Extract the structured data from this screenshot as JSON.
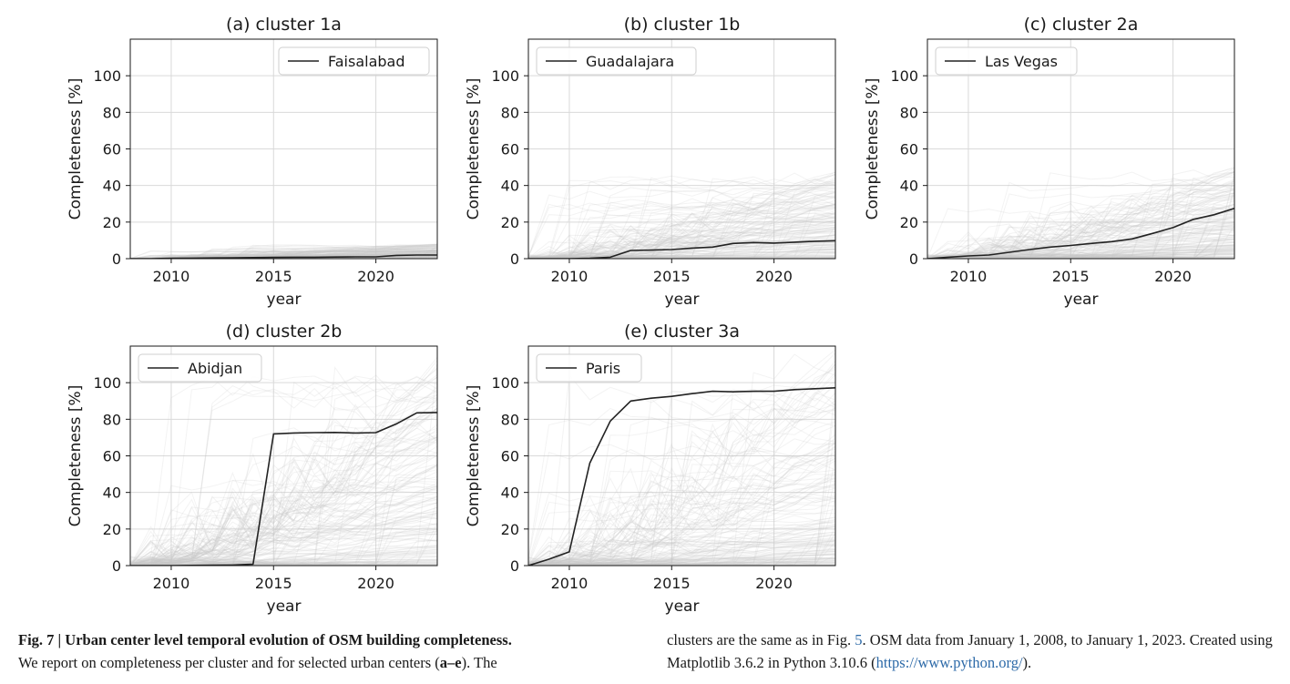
{
  "chart_data": [
    {
      "type": "line",
      "title": "(a) cluster 1a",
      "xlabel": "year",
      "ylabel": "Completeness [%]",
      "xlim": [
        2008,
        2023
      ],
      "ylim": [
        0,
        120
      ],
      "xticks": [
        2010,
        2015,
        2020
      ],
      "yticks": [
        0,
        20,
        40,
        60,
        80,
        100
      ],
      "grid": true,
      "legend_position": "top-right",
      "background_band_max": 8,
      "series": [
        {
          "name": "Faisalabad",
          "color": "#222222",
          "x": [
            2008,
            2009,
            2010,
            2011,
            2012,
            2013,
            2014,
            2015,
            2016,
            2017,
            2018,
            2019,
            2020,
            2021,
            2022,
            2023
          ],
          "y": [
            0,
            0,
            0.2,
            0.3,
            0.4,
            0.5,
            0.6,
            0.7,
            0.8,
            0.8,
            0.9,
            1.0,
            1.0,
            1.8,
            2.0,
            2.0
          ]
        }
      ]
    },
    {
      "type": "line",
      "title": "(b) cluster 1b",
      "xlabel": "year",
      "ylabel": "Completeness [%]",
      "xlim": [
        2008,
        2023
      ],
      "ylim": [
        0,
        120
      ],
      "xticks": [
        2010,
        2015,
        2020
      ],
      "yticks": [
        0,
        20,
        40,
        60,
        80,
        100
      ],
      "grid": true,
      "legend_position": "top-left",
      "background_band_max": 48,
      "series": [
        {
          "name": "Guadalajara",
          "color": "#222222",
          "x": [
            2008,
            2009,
            2010,
            2011,
            2012,
            2013,
            2014,
            2015,
            2016,
            2017,
            2018,
            2019,
            2020,
            2021,
            2022,
            2023
          ],
          "y": [
            0,
            0,
            0,
            0.2,
            0.8,
            4.5,
            4.7,
            5.0,
            5.8,
            6.3,
            8.3,
            8.8,
            8.5,
            9.0,
            9.5,
            9.8
          ]
        }
      ]
    },
    {
      "type": "line",
      "title": "(c) cluster 2a",
      "xlabel": "year",
      "ylabel": "Completeness [%]",
      "xlim": [
        2008,
        2023
      ],
      "ylim": [
        0,
        120
      ],
      "xticks": [
        2010,
        2015,
        2020
      ],
      "yticks": [
        0,
        20,
        40,
        60,
        80,
        100
      ],
      "grid": true,
      "legend_position": "top-left",
      "background_band_max": 50,
      "series": [
        {
          "name": "Las Vegas",
          "color": "#222222",
          "x": [
            2008,
            2009,
            2010,
            2011,
            2012,
            2013,
            2014,
            2015,
            2016,
            2017,
            2018,
            2019,
            2020,
            2021,
            2022,
            2023
          ],
          "y": [
            0,
            0.8,
            1.5,
            2.0,
            3.5,
            5.0,
            6.3,
            7.2,
            8.3,
            9.3,
            10.8,
            13.8,
            17.0,
            21.5,
            24.0,
            27.5
          ]
        }
      ]
    },
    {
      "type": "line",
      "title": "(d) cluster 2b",
      "xlabel": "year",
      "ylabel": "Completeness [%]",
      "xlim": [
        2008,
        2023
      ],
      "ylim": [
        0,
        120
      ],
      "xticks": [
        2010,
        2015,
        2020
      ],
      "yticks": [
        0,
        20,
        40,
        60,
        80,
        100
      ],
      "grid": true,
      "legend_position": "top-left",
      "background_band_max": 115,
      "series": [
        {
          "name": "Abidjan",
          "color": "#222222",
          "x": [
            2008,
            2009,
            2010,
            2011,
            2012,
            2013,
            2014,
            2015,
            2016,
            2017,
            2018,
            2019,
            2020,
            2021,
            2022,
            2023
          ],
          "y": [
            0,
            0,
            0,
            0.1,
            0.2,
            0.3,
            0.8,
            72.0,
            72.5,
            72.7,
            72.8,
            72.5,
            72.7,
            77.5,
            83.5,
            83.7
          ]
        }
      ]
    },
    {
      "type": "line",
      "title": "(e) cluster 3a",
      "xlabel": "year",
      "ylabel": "Completeness [%]",
      "xlim": [
        2008,
        2023
      ],
      "ylim": [
        0,
        120
      ],
      "xticks": [
        2010,
        2015,
        2020
      ],
      "yticks": [
        0,
        20,
        40,
        60,
        80,
        100
      ],
      "grid": true,
      "legend_position": "top-left",
      "background_band_max": 120,
      "series": [
        {
          "name": "Paris",
          "color": "#222222",
          "x": [
            2008,
            2009,
            2010,
            2011,
            2012,
            2013,
            2014,
            2015,
            2016,
            2017,
            2018,
            2019,
            2020,
            2021,
            2022,
            2023
          ],
          "y": [
            0,
            3.5,
            7.5,
            56.0,
            79.0,
            90.0,
            91.5,
            92.5,
            94.0,
            95.3,
            95.0,
            95.3,
            95.3,
            96.2,
            96.7,
            97.2
          ]
        }
      ]
    }
  ],
  "caption": {
    "lead": "Fig. 7 | Urban center level temporal evolution of OSM building completeness.",
    "left_rest": "We report on completeness per cluster and for selected urban centers (",
    "range": "a–e",
    "left_end": "). The",
    "right_part1": "clusters are the same as in Fig. ",
    "fig_ref": "5",
    "right_part2": ". OSM data from January 1, 2008, to January 1, 2023. Created using Matplotlib 3.6.2 in Python 3.10.6 (",
    "url": "https://www.python.org/",
    "right_end": ")."
  },
  "colors": {
    "line": "#222222",
    "grid": "#d9d9d9",
    "background_lines": "#c8c8c8",
    "link": "#2d6aa8"
  }
}
